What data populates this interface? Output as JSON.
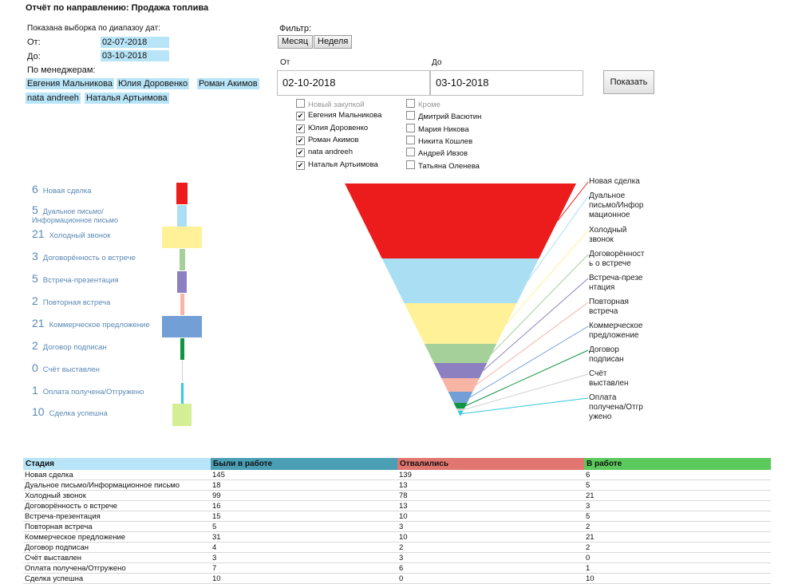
{
  "report_title": "Отчёт по направлению: Продажа топлива",
  "selection": {
    "caption": "Показана выборка по диапазоу дат:",
    "from_label": "От:",
    "from_value": "02-07-2018",
    "to_label": "До:",
    "to_value": "03-10-2018",
    "managers_label": "По менеджерам:",
    "managers": [
      "Евгения Мальникова",
      "Юлия Доровенко",
      "Роман Акимов",
      "nata andreeh",
      "Наталья Артьимова"
    ]
  },
  "filter": {
    "label": "Фильтр:",
    "month_button": "Месяц",
    "week_button": "Неделя",
    "from_label": "От",
    "to_label": "До",
    "from_value": "02-10-2018",
    "to_value": "03-10-2018",
    "show_button": "Показать",
    "checkboxes_left": [
      {
        "label": "Новый закупкой",
        "checked": false
      },
      {
        "label": "Евгения Мальникова",
        "checked": true
      },
      {
        "label": "Юлия Доровенко",
        "checked": true
      },
      {
        "label": "Роман Акимов",
        "checked": true
      },
      {
        "label": "nata andreeh",
        "checked": true
      },
      {
        "label": "Наталья Артьимова",
        "checked": true
      }
    ],
    "checkboxes_right": [
      {
        "label": "Кроме",
        "checked": false
      },
      {
        "label": "Дмитрий Васютин",
        "checked": false
      },
      {
        "label": "Мария Никова",
        "checked": false
      },
      {
        "label": "Никита Кошлев",
        "checked": false
      },
      {
        "label": "Андрей Ивзов",
        "checked": false
      },
      {
        "label": "Татьяна Оленева",
        "checked": false
      }
    ]
  },
  "chart_data": {
    "type": "bar",
    "categories": [
      "Новая сделка",
      "Дуальное письмо/ Информационное письмо",
      "Холодный звонок",
      "Договорённость о встрече",
      "Встреча-презентация",
      "Повторная встреча",
      "Коммерческое предложение",
      "Договор подписан",
      "Счёт выставлен",
      "Оплата получена/Отгружено",
      "Сделка успешна"
    ],
    "values": [
      6,
      5,
      21,
      3,
      5,
      2,
      21,
      2,
      0,
      1,
      10
    ],
    "colors": [
      "#ec1c1c",
      "#aadff3",
      "#fff197",
      "#a6d09a",
      "#8c80c0",
      "#f8b4a4",
      "#729fd6",
      "#0f9441",
      "#d0d0d0",
      "#33c9df",
      "#d4ee96"
    ]
  },
  "funnel": {
    "labels": [
      "Новая сделка",
      "Дуальное письмо/Информационное письмо",
      "Холодный звонок",
      "Договорённость о встрече",
      "Встреча-презентация",
      "Повторная встреча",
      "Коммерческое предложение",
      "Договор подписан",
      "Счёт выставлен",
      "Оплата получена/Отгружено"
    ],
    "label_lines": [
      "Новая сделка",
      "Дуальное\nписьмо/Инфор\nмационное",
      "Холодный\nзвонок",
      "Договорённост\nь о встрече",
      "Встреча-презе\nнтация",
      "Повторная\nвстреча",
      "Коммерческое\nпредложение",
      "Договор\nподписан",
      "Счёт\nвыставлен",
      "Оплата\nполучена/Отгр\nужено"
    ],
    "colors": [
      "#ec1c1c",
      "#aadff3",
      "#fff197",
      "#a6d09a",
      "#8c80c0",
      "#f8b4a4",
      "#729fd6",
      "#0f9441",
      "#d0d0d0",
      "#33c9df"
    ]
  },
  "table": {
    "headers": [
      "Стадия",
      "Были в работе",
      "Отвалились",
      "В работе"
    ],
    "header_colors": [
      "#b8e4f7",
      "#4a9fb5",
      "#e0766f",
      "#5cc95c"
    ],
    "rows": [
      [
        "Новая сделка",
        "145",
        "139",
        "6"
      ],
      [
        "Дуальное письмо/Информационное письмо",
        "18",
        "13",
        "5"
      ],
      [
        "Холодный звонок",
        "99",
        "78",
        "21"
      ],
      [
        "Договорённость о встрече",
        "16",
        "13",
        "3"
      ],
      [
        "Встреча-презентация",
        "15",
        "10",
        "5"
      ],
      [
        "Повторная встреча",
        "5",
        "3",
        "2"
      ],
      [
        "Коммерческое предложение",
        "31",
        "10",
        "21"
      ],
      [
        "Договор подписан",
        "4",
        "2",
        "2"
      ],
      [
        "Счёт выставлен",
        "3",
        "3",
        "0"
      ],
      [
        "Оплата получена/Отгружено",
        "7",
        "6",
        "1"
      ],
      [
        "Сделка успешна",
        "10",
        "0",
        "10"
      ]
    ]
  }
}
